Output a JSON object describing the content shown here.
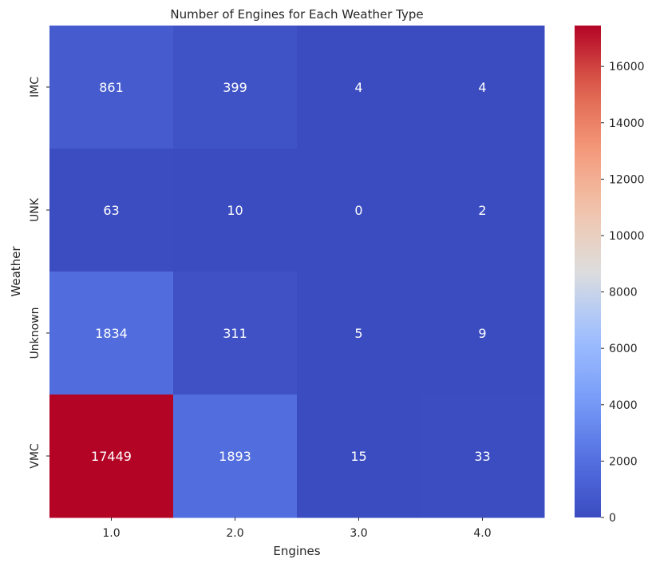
{
  "chart_data": {
    "type": "heatmap",
    "title": "Number of Engines for Each Weather Type",
    "xlabel": "Engines",
    "ylabel": "Weather",
    "x_categories": [
      "1.0",
      "2.0",
      "3.0",
      "4.0"
    ],
    "y_categories": [
      "IMC",
      "UNK",
      "Unknown",
      "VMC"
    ],
    "values": [
      [
        861,
        399,
        4,
        4
      ],
      [
        63,
        10,
        0,
        2
      ],
      [
        1834,
        311,
        5,
        9
      ],
      [
        17449,
        1893,
        15,
        33
      ]
    ],
    "colormap": "coolwarm",
    "color_range": [
      0,
      17449
    ],
    "colorbar_ticks": [
      0,
      2000,
      4000,
      6000,
      8000,
      10000,
      12000,
      14000,
      16000
    ],
    "annotations": true
  }
}
